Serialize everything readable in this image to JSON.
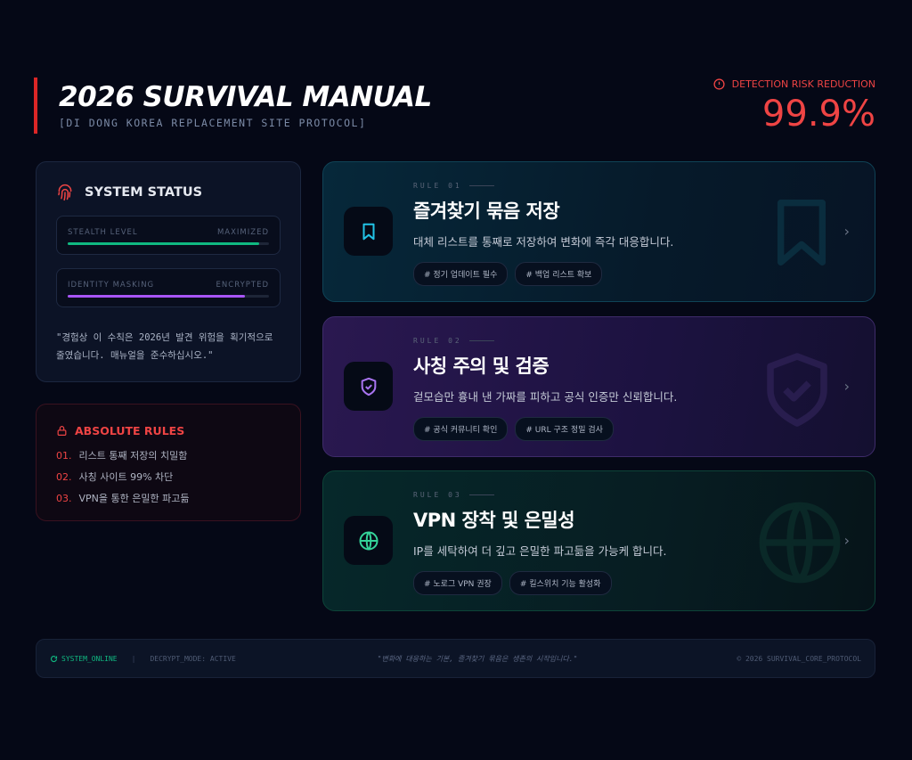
{
  "header": {
    "title": "2026 SURVIVAL MANUAL",
    "subtitle": "[DI DONG KOREA REPLACEMENT SITE PROTOCOL]",
    "risk_label": "DETECTION RISK REDUCTION",
    "risk_value": "99.9%"
  },
  "status": {
    "title": "SYSTEM STATUS",
    "bars": [
      {
        "label": "STEALTH LEVEL",
        "value": "MAXIMIZED",
        "percent": 95,
        "color": "#10b981"
      },
      {
        "label": "IDENTITY MASKING",
        "value": "ENCRYPTED",
        "percent": 88,
        "color": "#a855f7"
      }
    ],
    "quote": "\"경험상 이 수칙은 2026년 발견 위험을 획기적으로 줄였습니다. 매뉴얼을 준수하십시오.\""
  },
  "rules": {
    "title": "ABSOLUTE RULES",
    "items": [
      {
        "num": "01.",
        "text": "리스트 통째 저장의 치밀함"
      },
      {
        "num": "02.",
        "text": "사칭 사이트 99% 차단"
      },
      {
        "num": "03.",
        "text": "VPN을 통한 은밀한 파고듦"
      }
    ]
  },
  "cards": [
    {
      "rule": "RULE 01",
      "title": "즐겨찾기 묶음 저장",
      "desc": "대체 리스트를 통째로 저장하여 변화에 즉각 대응합니다.",
      "tags": [
        "# 정기 업데이트 필수",
        "# 백업 리스트 확보"
      ],
      "icon": "bookmark-icon",
      "color": "#22c3e6"
    },
    {
      "rule": "RULE 02",
      "title": "사칭 주의 및 검증",
      "desc": "겉모습만 흉내 낸 가짜를 피하고 공식 인증만 신뢰합니다.",
      "tags": [
        "# 공식 커뮤니티 확인",
        "# URL 구조 정밀 검사"
      ],
      "icon": "shield-check-icon",
      "color": "#a874f0"
    },
    {
      "rule": "RULE 03",
      "title": "VPN 장착 및 은밀성",
      "desc": "IP를 세탁하여 더 깊고 은밀한 파고듦을 가능케 합니다.",
      "tags": [
        "# 노로그 VPN 권장",
        "# 킬스위치 기능 활성화"
      ],
      "icon": "globe-icon",
      "color": "#34d399"
    }
  ],
  "footer": {
    "online": "SYSTEM_ONLINE",
    "mode": "DECRYPT_MODE: ACTIVE",
    "quote": "\"변화에 대응하는 기본, 즐겨찾기 묶음은 생존의 시작입니다.\"",
    "copyright": "© 2026 SURVIVAL_CORE_PROTOCOL"
  }
}
